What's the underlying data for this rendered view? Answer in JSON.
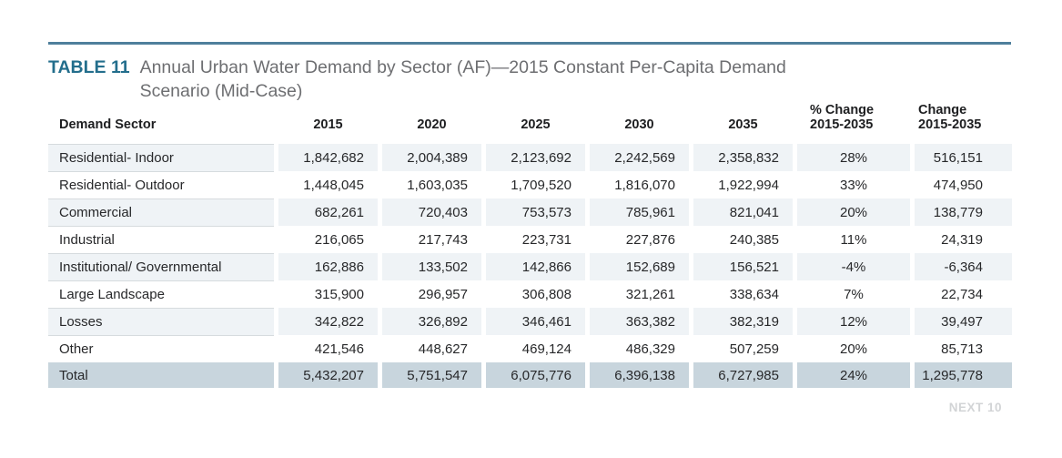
{
  "page": {
    "title_label": "TABLE 11",
    "title_lines": [
      "Annual Urban Water Demand by Sector (AF)—2015 Constant Per-Capita Demand",
      "Scenario (Mid-Case)"
    ],
    "footer_note": "NEXT 10"
  },
  "colors": {
    "accent_teal": "#236e8c",
    "top_rule": "#4f7f9c",
    "title_gray": "#6d6e71",
    "row_stripe": "#eff3f6",
    "total_row": "#c8d5dd",
    "footer_gray": "#d2d4d6"
  },
  "table": {
    "headers": [
      {
        "lines": [
          "Demand Sector"
        ]
      },
      {
        "lines": [
          "2015"
        ]
      },
      {
        "lines": [
          "2020"
        ]
      },
      {
        "lines": [
          "2025"
        ]
      },
      {
        "lines": [
          "2030"
        ]
      },
      {
        "lines": [
          "2035"
        ]
      },
      {
        "lines": [
          "% Change",
          "2015-2035"
        ]
      },
      {
        "lines": [
          "Change",
          "2015-2035"
        ]
      }
    ],
    "rows": [
      {
        "sector": "Residential- Indoor",
        "values": [
          "1,842,682",
          "2,004,389",
          "2,123,692",
          "2,242,569",
          "2,358,832",
          "28%",
          "516,151"
        ]
      },
      {
        "sector": "Residential- Outdoor",
        "values": [
          "1,448,045",
          "1,603,035",
          "1,709,520",
          "1,816,070",
          "1,922,994",
          "33%",
          "474,950"
        ]
      },
      {
        "sector": "Commercial",
        "values": [
          "682,261",
          "720,403",
          "753,573",
          "785,961",
          "821,041",
          "20%",
          "138,779"
        ]
      },
      {
        "sector": "Industrial",
        "values": [
          "216,065",
          "217,743",
          "223,731",
          "227,876",
          "240,385",
          "11%",
          "24,319"
        ]
      },
      {
        "sector": "Institutional/ Governmental",
        "values": [
          "162,886",
          "133,502",
          "142,866",
          "152,689",
          "156,521",
          "-4%",
          "-6,364"
        ]
      },
      {
        "sector": "Large Landscape",
        "values": [
          "315,900",
          "296,957",
          "306,808",
          "321,261",
          "338,634",
          "7%",
          "22,734"
        ]
      },
      {
        "sector": "Losses",
        "values": [
          "342,822",
          "326,892",
          "346,461",
          "363,382",
          "382,319",
          "12%",
          "39,497"
        ]
      },
      {
        "sector": "Other",
        "values": [
          "421,546",
          "448,627",
          "469,124",
          "486,329",
          "507,259",
          "20%",
          "85,713"
        ]
      }
    ],
    "total": {
      "sector": "Total",
      "values": [
        "5,432,207",
        "5,751,547",
        "6,075,776",
        "6,396,138",
        "6,727,985",
        "24%",
        "1,295,778"
      ]
    }
  }
}
